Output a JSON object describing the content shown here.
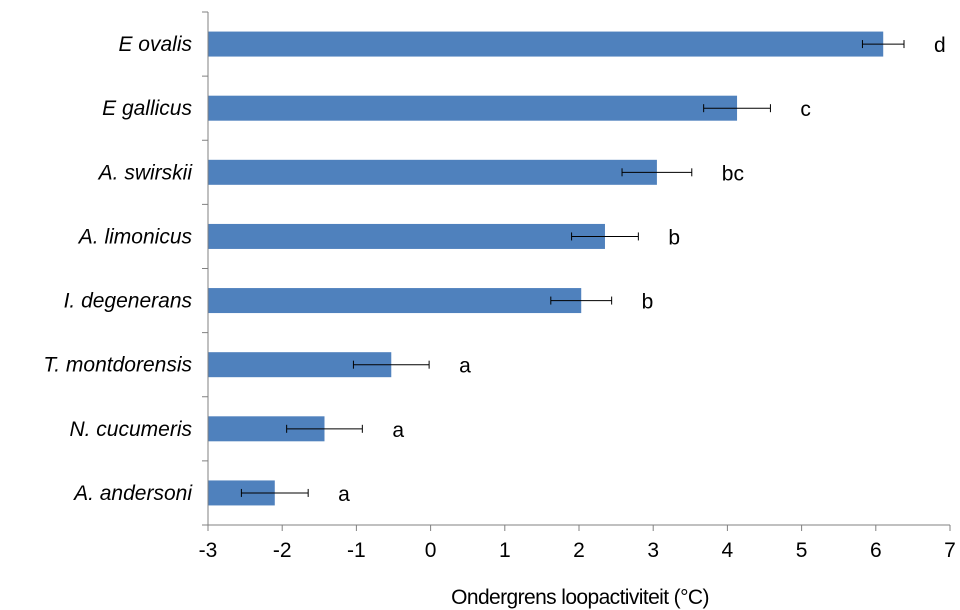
{
  "chart_data": {
    "type": "bar",
    "orientation": "horizontal",
    "categories": [
      "E ovalis",
      "E gallicus",
      "A. swirskii",
      "A. limonicus",
      "I. degenerans",
      "T. montdorensis",
      "N. cucumeris",
      "A. andersoni"
    ],
    "values": [
      6.1,
      4.13,
      3.05,
      2.35,
      2.03,
      -0.53,
      -1.43,
      -2.1
    ],
    "errors": [
      0.28,
      0.45,
      0.47,
      0.45,
      0.41,
      0.51,
      0.51,
      0.45
    ],
    "significance": [
      "d",
      "c",
      "bc",
      "b",
      "b",
      "a",
      "a",
      "a"
    ],
    "xlabel": "Ondergrens loopactiviteit (°C)",
    "ylabel": "",
    "xlim": [
      -3,
      7
    ],
    "xticks": [
      "-3",
      "-2",
      "-1",
      "0",
      "1",
      "2",
      "3",
      "4",
      "5",
      "6",
      "7"
    ],
    "grid": false,
    "bar_color": "#4f81bd"
  }
}
